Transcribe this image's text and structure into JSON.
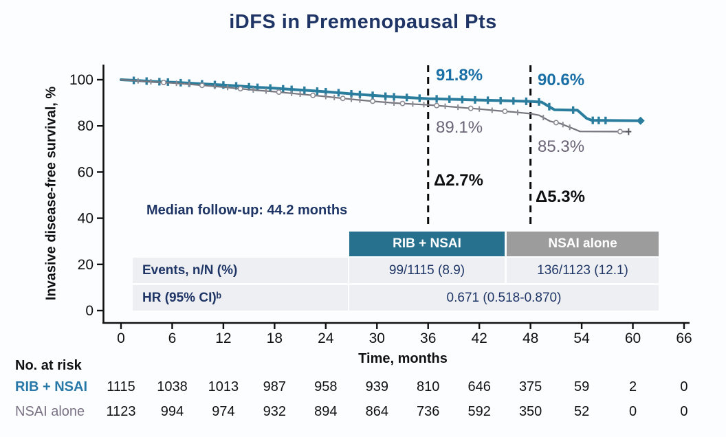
{
  "title": "iDFS in Premenopausal Pts",
  "colors": {
    "navy_text": "#1E3566",
    "teal_curve": "#2B7D9E",
    "teal_header_bg": "#27718F",
    "gray_curve": "#77767E",
    "gray_header_bg": "#9C9C9C",
    "blue_annotation": "#1A6FA6",
    "gray_annotation": "#6C6577",
    "row_bg": "#EDEFF3"
  },
  "chart_data": {
    "type": "line",
    "subtype": "kaplan-meier-step",
    "title": "iDFS in Premenopausal Pts",
    "xlabel": "Time, months",
    "ylabel": "Invasive disease-free survival, %",
    "xlim": [
      0,
      66
    ],
    "ylim": [
      0,
      100
    ],
    "x_ticks": [
      0,
      6,
      12,
      18,
      24,
      30,
      36,
      42,
      48,
      54,
      60,
      66
    ],
    "y_ticks": [
      0,
      20,
      40,
      60,
      80,
      100
    ],
    "grid": false,
    "reference_lines_x": [
      36,
      48
    ],
    "series": [
      {
        "name": "RIB + NSAI",
        "color": "#2B7D9E",
        "line_width": 4,
        "end_marker": "diamond",
        "points": [
          [
            0,
            100
          ],
          [
            2,
            99.6
          ],
          [
            4,
            99.2
          ],
          [
            6,
            98.9
          ],
          [
            8,
            98.5
          ],
          [
            10,
            98.1
          ],
          [
            12,
            97.7
          ],
          [
            14,
            97.2
          ],
          [
            16,
            96.7
          ],
          [
            18,
            96.3
          ],
          [
            20,
            95.8
          ],
          [
            22,
            95.3
          ],
          [
            24,
            94.8
          ],
          [
            26,
            94.2
          ],
          [
            28,
            93.6
          ],
          [
            30,
            93.1
          ],
          [
            32,
            92.6
          ],
          [
            34,
            92.2
          ],
          [
            36,
            91.8
          ],
          [
            38,
            91.6
          ],
          [
            40,
            91.4
          ],
          [
            42,
            91.2
          ],
          [
            44,
            91.0
          ],
          [
            46,
            90.8
          ],
          [
            48,
            90.6
          ],
          [
            49.3,
            90.3
          ],
          [
            50.8,
            87.0
          ],
          [
            53.5,
            86.8
          ],
          [
            54.6,
            83.2
          ],
          [
            55.2,
            82.4
          ],
          [
            60.9,
            82.2
          ]
        ],
        "censor_months": [
          1.5,
          3,
          4.5,
          5.5,
          7,
          8,
          9.5,
          11,
          12,
          13.5,
          15,
          16,
          17.5,
          19,
          20,
          21.5,
          23,
          24,
          25.5,
          27,
          28,
          29.5,
          31,
          32,
          33.5,
          35,
          37,
          38.5,
          40,
          41.5,
          43,
          44.5,
          46,
          47.5,
          49,
          50.2,
          53,
          55.3,
          56,
          56.8
        ],
        "survival_at_36": 91.8,
        "survival_at_48": 90.6
      },
      {
        "name": "NSAI alone",
        "color": "#77767E",
        "line_width": 2.2,
        "end_marker": "plus",
        "points": [
          [
            0,
            100
          ],
          [
            2,
            99.5
          ],
          [
            4,
            99.0
          ],
          [
            6,
            98.6
          ],
          [
            8,
            98.0
          ],
          [
            10,
            97.4
          ],
          [
            12,
            96.8
          ],
          [
            14,
            96.1
          ],
          [
            16,
            95.4
          ],
          [
            18,
            94.8
          ],
          [
            20,
            94.1
          ],
          [
            22,
            93.4
          ],
          [
            24,
            92.7
          ],
          [
            26,
            91.9
          ],
          [
            28,
            91.2
          ],
          [
            30,
            90.5
          ],
          [
            32,
            89.9
          ],
          [
            34,
            89.5
          ],
          [
            36,
            89.1
          ],
          [
            38,
            88.5
          ],
          [
            40,
            87.9
          ],
          [
            42,
            87.3
          ],
          [
            44,
            86.6
          ],
          [
            46,
            86.0
          ],
          [
            48,
            85.3
          ],
          [
            49,
            84.6
          ],
          [
            50.3,
            82.0
          ],
          [
            51.5,
            81.0
          ],
          [
            53.2,
            78.5
          ],
          [
            53.8,
            77.6
          ],
          [
            59.5,
            77.5
          ]
        ],
        "censor_months": [
          2,
          3.5,
          5,
          6.5,
          8,
          9.5,
          11,
          12.5,
          14,
          15.5,
          17,
          18.5,
          20,
          21,
          22.5,
          24,
          25,
          26,
          27,
          28,
          29.5,
          31,
          32,
          33,
          34.2,
          35.5,
          37,
          38,
          39.5,
          41,
          42,
          43.5,
          45,
          46.5,
          49.5,
          51,
          51.8,
          52.6,
          58.5
        ],
        "survival_at_36": 89.1,
        "survival_at_48": 85.3
      }
    ],
    "annotations": {
      "t36_rib": "91.8%",
      "t36_nsai": "89.1%",
      "t48_rib": "90.6%",
      "t48_nsai": "85.3%",
      "delta_36": "Δ2.7%",
      "delta_48": "Δ5.3%",
      "median_followup": "Median follow-up: 44.2 months"
    }
  },
  "events_table": {
    "col_headers": [
      "RIB + NSAI",
      "NSAI alone"
    ],
    "rows": [
      {
        "label": "Events, n/N (%)",
        "values": [
          "99/1115 (8.9)",
          "136/1123 (12.1)"
        ]
      },
      {
        "label": "HR (95% CI)ᵇ",
        "values": [
          "0.671 (0.518-0.870)"
        ]
      }
    ]
  },
  "at_risk": {
    "heading": "No. at risk",
    "time_points": [
      0,
      6,
      12,
      18,
      24,
      30,
      36,
      42,
      48,
      54,
      60,
      66
    ],
    "rows": [
      {
        "label": "RIB + NSAI",
        "label_color": "#2878A8",
        "counts": [
          1115,
          1038,
          1013,
          987,
          958,
          939,
          810,
          646,
          375,
          59,
          2,
          0
        ]
      },
      {
        "label": "NSAI alone",
        "label_color": "#7A7284",
        "counts": [
          1123,
          994,
          974,
          932,
          894,
          864,
          736,
          592,
          350,
          52,
          0,
          0
        ]
      }
    ]
  }
}
